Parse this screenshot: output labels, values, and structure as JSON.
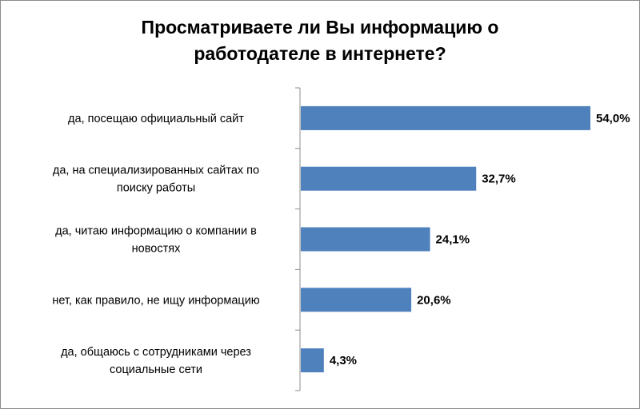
{
  "chart_data": {
    "type": "bar",
    "orientation": "horizontal",
    "title_lines": [
      "Просматриваете ли Вы информацию о",
      "работодателе в интернете?"
    ],
    "categories": [
      [
        "да, посещаю официальный сайт"
      ],
      [
        "да, на специализированных сайтах по",
        "поиску работы"
      ],
      [
        "да, читаю информацию о компании в",
        "новостях"
      ],
      [
        "нет, как правило, не ищу информацию"
      ],
      [
        "да, общаюсь с сотрудниками через",
        "социальные сети"
      ]
    ],
    "values": [
      54.0,
      32.7,
      24.1,
      20.6,
      4.3
    ],
    "value_labels": [
      "54,0%",
      "32,7%",
      "24,1%",
      "20,6%",
      "4,3%"
    ],
    "xlim": [
      0,
      54.0
    ],
    "legend": "none",
    "grid": false,
    "bar_color": "#4f81bd"
  }
}
